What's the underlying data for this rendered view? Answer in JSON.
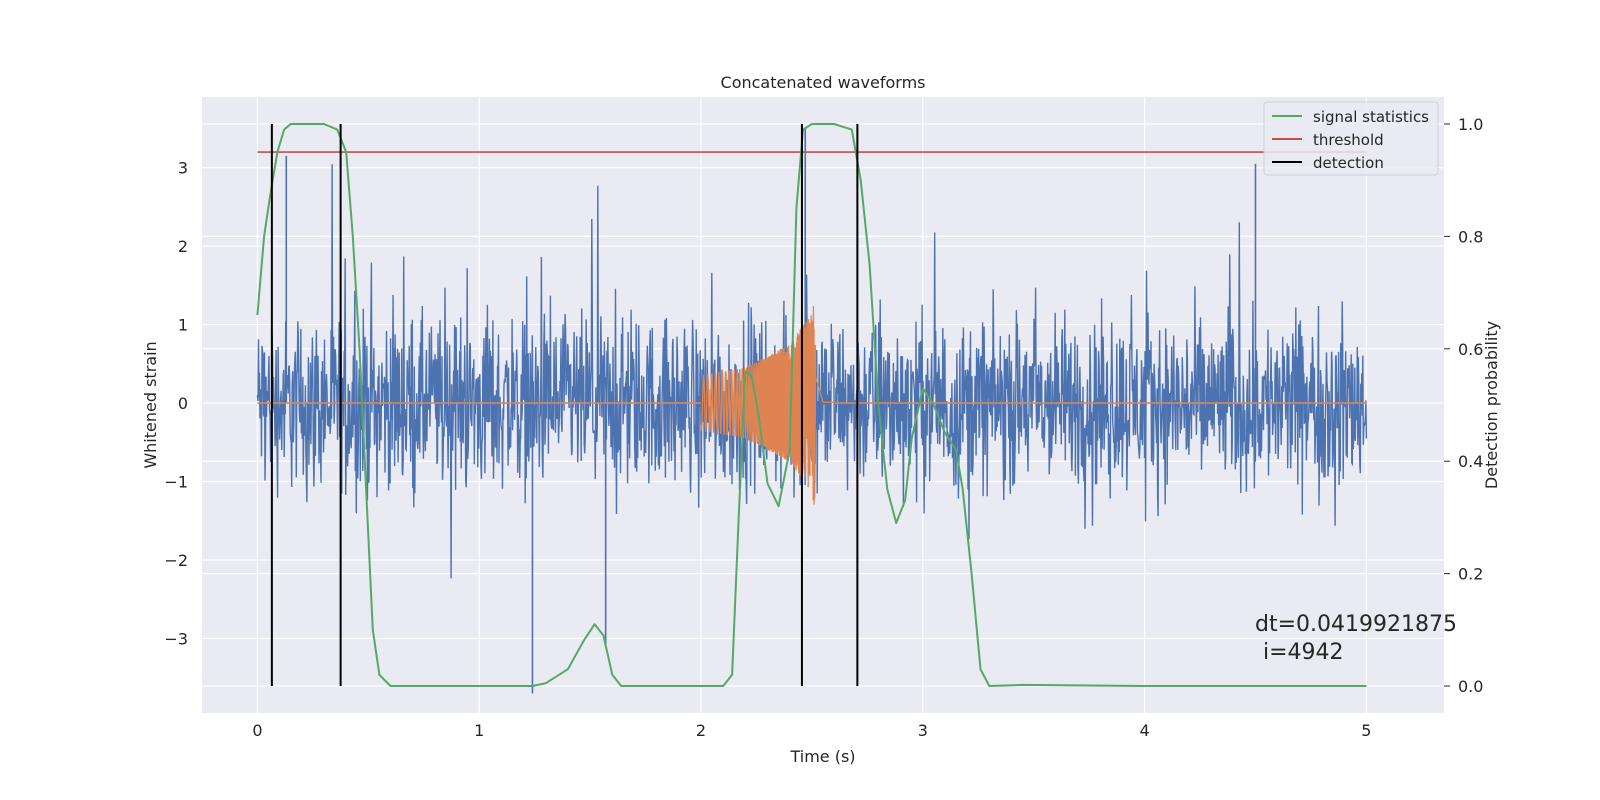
{
  "chart_data": {
    "type": "line",
    "title": "Concatenated waveforms",
    "xlabel": "Time (s)",
    "ylabel": "Whitened strain",
    "y2label": "Detection probability",
    "xlim": [
      -0.25,
      5.35
    ],
    "ylim": [
      -3.95,
      3.9
    ],
    "y2lim": [
      -0.048,
      1.048
    ],
    "xticks": [
      0,
      1,
      2,
      3,
      4,
      5
    ],
    "yticks": [
      -3,
      -2,
      -1,
      0,
      1,
      2,
      3
    ],
    "y2ticks": [
      0.0,
      0.2,
      0.4,
      0.6,
      0.8,
      1.0
    ],
    "xtick_labels": [
      "0",
      "1",
      "2",
      "3",
      "4",
      "5"
    ],
    "ytick_labels": [
      "−3",
      "−2",
      "−1",
      "0",
      "1",
      "2",
      "3"
    ],
    "y2tick_labels": [
      "0.0",
      "0.2",
      "0.4",
      "0.6",
      "0.8",
      "1.0"
    ],
    "grid": true,
    "legend_position": "top-right",
    "colors": {
      "strain": "#4c72b0",
      "injection": "#dd8452",
      "signal_statistics": "#55a868",
      "threshold": "#c44e52",
      "detection": "#000000",
      "axes_bg": "#eaeaf2",
      "grid": "#ffffff"
    },
    "series": [
      {
        "name": "signal statistics",
        "axis": "right",
        "x": [
          0.0,
          0.03,
          0.06,
          0.09,
          0.12,
          0.15,
          0.2,
          0.3,
          0.36,
          0.4,
          0.43,
          0.46,
          0.49,
          0.52,
          0.55,
          0.6,
          1.0,
          1.24,
          1.3,
          1.4,
          1.47,
          1.52,
          1.56,
          1.6,
          1.64,
          1.7,
          2.0,
          2.1,
          2.14,
          2.17,
          2.2,
          2.23,
          2.26,
          2.3,
          2.35,
          2.4,
          2.43,
          2.46,
          2.5,
          2.6,
          2.68,
          2.72,
          2.76,
          2.8,
          2.84,
          2.88,
          2.92,
          2.95,
          3.0,
          3.05,
          3.1,
          3.15,
          3.18,
          3.22,
          3.26,
          3.3,
          3.45,
          4.0,
          5.0
        ],
        "values": [
          0.66,
          0.8,
          0.88,
          0.95,
          0.99,
          1.0,
          1.0,
          1.0,
          0.99,
          0.95,
          0.8,
          0.6,
          0.35,
          0.1,
          0.02,
          0.0,
          0.0,
          0.0,
          0.005,
          0.03,
          0.08,
          0.11,
          0.09,
          0.02,
          0.0,
          0.0,
          0.0,
          0.0,
          0.02,
          0.3,
          0.56,
          0.55,
          0.48,
          0.36,
          0.32,
          0.42,
          0.85,
          0.99,
          1.0,
          1.0,
          0.99,
          0.9,
          0.75,
          0.5,
          0.35,
          0.29,
          0.33,
          0.44,
          0.53,
          0.5,
          0.45,
          0.42,
          0.35,
          0.2,
          0.03,
          0.0,
          0.002,
          0.0,
          0.0
        ]
      },
      {
        "name": "threshold",
        "axis": "right",
        "x": [
          0.0,
          5.0
        ],
        "values": [
          0.95,
          0.95
        ]
      },
      {
        "name": "detection",
        "axis": "right",
        "x": [
          0.065,
          0.375,
          2.455,
          2.705
        ],
        "values": [
          1.0,
          1.0,
          1.0,
          1.0
        ]
      },
      {
        "name": "",
        "axis": "left",
        "x": [
          0.0,
          5.0
        ],
        "values": [
          0.0,
          0.0
        ],
        "description_envelope": {
          "x_range": [
            0.0,
            5.0
          ],
          "typical_amplitude": [
            -1.5,
            1.7
          ],
          "peaks": [
            [
              1.24,
              -3.7
            ],
            [
              1.57,
              -3.1
            ],
            [
              2.47,
              3.5
            ],
            [
              0.13,
              3.15
            ],
            [
              4.5,
              3.05
            ]
          ]
        }
      },
      {
        "name": "",
        "axis": "left",
        "x": [
          2.0,
          2.2,
          2.4,
          2.49,
          2.51,
          2.55,
          5.0
        ],
        "values": [
          0.35,
          0.45,
          0.75,
          1.1,
          1.3,
          0.03,
          0.0
        ]
      }
    ]
  },
  "annotation": {
    "dt": "dt=0.0419921875",
    "i": "i=4942"
  },
  "legend": {
    "items": [
      "signal statistics",
      "threshold",
      "detection"
    ]
  }
}
